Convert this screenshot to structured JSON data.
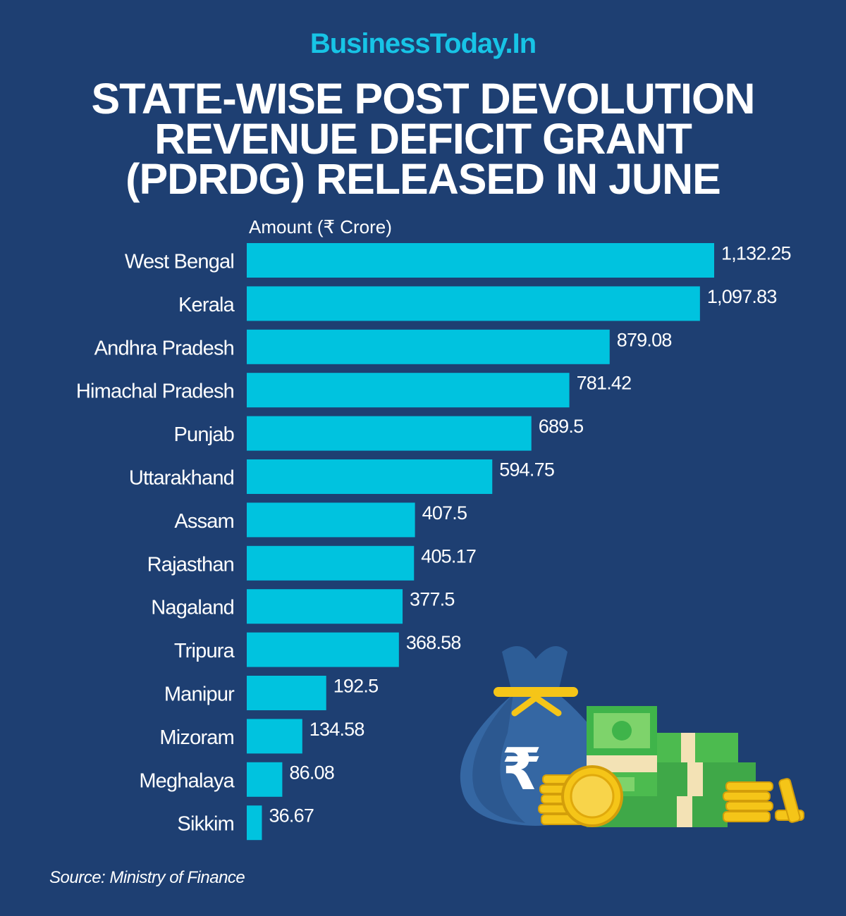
{
  "header": {
    "brand": "BusinessToday.In",
    "title_lines": [
      "STATE-WISE POST DEVOLUTION",
      "REVENUE DEFICIT GRANT",
      "(PDRDG) RELEASED IN JUNE"
    ]
  },
  "chart_data": {
    "type": "bar",
    "orientation": "horizontal",
    "title": "STATE-WISE POST DEVOLUTION REVENUE DEFICIT GRANT (PDRDG) RELEASED IN JUNE",
    "xlabel": "Amount (₹ Crore)",
    "ylabel": "",
    "categories": [
      "West Bengal",
      "Kerala",
      "Andhra Pradesh",
      "Himachal Pradesh",
      "Punjab",
      "Uttarakhand",
      "Assam",
      "Rajasthan",
      "Nagaland",
      "Tripura",
      "Manipur",
      "Mizoram",
      "Meghalaya",
      "Sikkim"
    ],
    "values": [
      1132.25,
      1097.83,
      879.08,
      781.42,
      689.5,
      594.75,
      407.5,
      405.17,
      377.5,
      368.58,
      192.5,
      134.58,
      86.08,
      36.67
    ],
    "value_labels": [
      "1,132.25",
      "1,097.83",
      "879.08",
      "781.42",
      "689.5",
      "594.75",
      "407.5",
      "405.17",
      "377.5",
      "368.58",
      "192.5",
      "134.58",
      "86.08",
      "36.67"
    ],
    "xlim": [
      0,
      1132.25
    ],
    "grid": false,
    "legend": "none"
  },
  "illustration": {
    "icon": "money-bag-cash-coins-icon",
    "symbol": "₹"
  },
  "source": "Source: Ministry of Finance",
  "colors": {
    "background": "#1e3f72",
    "bar": "#00c3df",
    "brand": "#17c4e6",
    "text": "#ffffff"
  }
}
